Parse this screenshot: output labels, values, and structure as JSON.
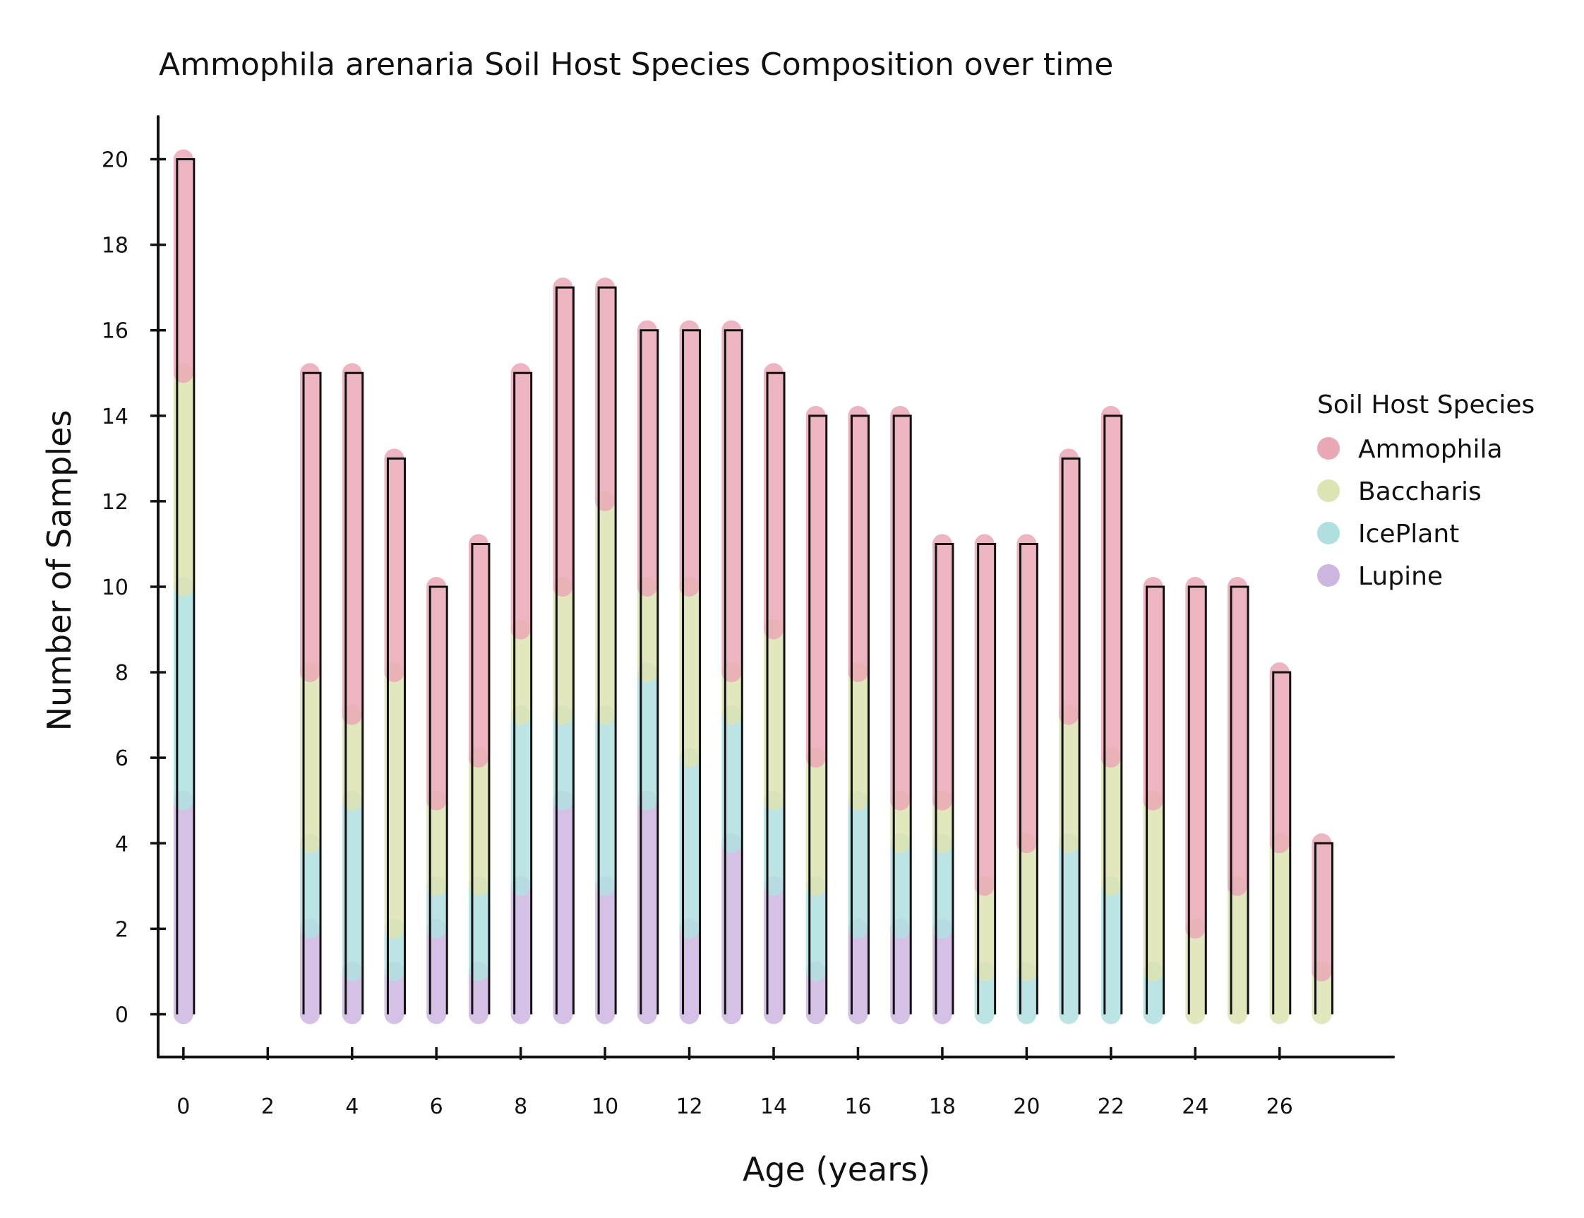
{
  "chart_data": {
    "type": "bar",
    "stacked": true,
    "title": "Ammophila arenaria Soil Host Species Composition over time",
    "xlabel": "Age (years)",
    "ylabel": "Number of Samples",
    "x": [
      0,
      3,
      4,
      5,
      6,
      7,
      8,
      9,
      10,
      11,
      12,
      13,
      14,
      15,
      16,
      17,
      18,
      19,
      20,
      21,
      22,
      23,
      24,
      25,
      26,
      27
    ],
    "xticks": [
      0,
      2,
      4,
      6,
      8,
      10,
      12,
      14,
      16,
      18,
      20,
      22,
      24,
      26
    ],
    "yticks": [
      0,
      2,
      4,
      6,
      8,
      10,
      12,
      14,
      16,
      18,
      20
    ],
    "xlim": [
      -0.6,
      28.7
    ],
    "ylim": [
      -1,
      21
    ],
    "grid": false,
    "legend": {
      "title": "Soil Host Species",
      "position": "right"
    },
    "series": [
      {
        "name": "Lupine",
        "color": "#cdb6e0",
        "values": [
          5,
          2,
          1,
          1,
          2,
          1,
          3,
          5,
          3,
          5,
          2,
          4,
          3,
          1,
          2,
          2,
          2,
          0,
          0,
          0,
          0,
          0,
          0,
          0,
          0,
          0
        ]
      },
      {
        "name": "IcePlant",
        "color": "#b0dfe0",
        "values": [
          5,
          2,
          4,
          1,
          1,
          2,
          4,
          2,
          4,
          3,
          4,
          3,
          2,
          2,
          3,
          2,
          2,
          1,
          1,
          4,
          3,
          1,
          0,
          0,
          0,
          0
        ]
      },
      {
        "name": "Baccharis",
        "color": "#dde3b3",
        "values": [
          5,
          4,
          2,
          6,
          2,
          3,
          2,
          3,
          5,
          2,
          4,
          1,
          4,
          3,
          3,
          1,
          1,
          2,
          3,
          3,
          3,
          4,
          2,
          3,
          4,
          1
        ]
      },
      {
        "name": "Ammophila",
        "color": "#e9a8b6",
        "values": [
          5,
          7,
          8,
          5,
          5,
          5,
          6,
          7,
          5,
          6,
          6,
          8,
          6,
          8,
          6,
          9,
          6,
          8,
          7,
          6,
          8,
          5,
          8,
          7,
          4,
          3
        ]
      }
    ],
    "totals": [
      20,
      15,
      15,
      13,
      10,
      11,
      15,
      17,
      17,
      16,
      16,
      16,
      15,
      14,
      14,
      14,
      11,
      11,
      11,
      13,
      14,
      10,
      10,
      10,
      8,
      4
    ]
  }
}
